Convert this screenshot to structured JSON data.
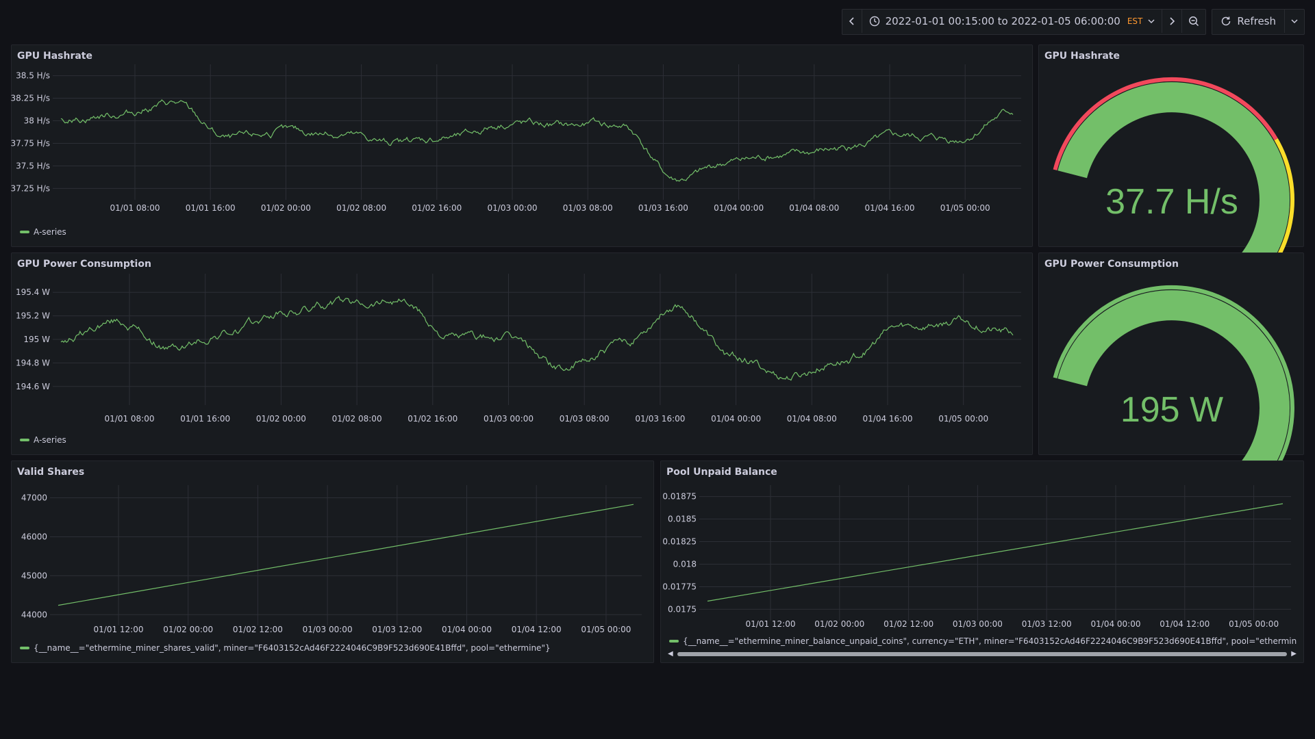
{
  "toolbar": {
    "time_range": "2022-01-01 00:15:00 to 2022-01-05 06:00:00",
    "timezone": "EST",
    "refresh_label": "Refresh"
  },
  "panels": {
    "hashrate_ts": {
      "title": "GPU Hashrate",
      "legend": "A-series"
    },
    "hashrate_gauge": {
      "title": "GPU Hashrate",
      "value": "37.7 H/s"
    },
    "power_ts": {
      "title": "GPU Power Consumption",
      "legend": "A-series"
    },
    "power_gauge": {
      "title": "GPU Power Consumption",
      "value": "195 W"
    },
    "shares": {
      "title": "Valid Shares",
      "legend": "{__name__=\"ethermine_miner_shares_valid\", miner=\"F6403152cAd46F2224046C9B9F523d690E41Bffd\", pool=\"ethermine\"}"
    },
    "balance": {
      "title": "Pool Unpaid Balance",
      "legend": "{__name__=\"ethermine_miner_balance_unpaid_coins\", currency=\"ETH\", miner=\"F6403152cAd46F2224046C9B9F523d690E41Bffd\", pool=\"ethermine\"}"
    }
  },
  "colors": {
    "series": "#73bf69",
    "red": "#f2495c",
    "yellow": "#fade2a",
    "track": "#2c2f36",
    "grid": "#2c2f36"
  },
  "chart_data": [
    {
      "id": "hashrate",
      "type": "line",
      "series": [
        {
          "name": "A-series",
          "x": [
            "2022-01-01 00:15",
            "2022-01-01 06:00",
            "2022-01-01 12:00",
            "2022-01-01 18:00",
            "2022-01-02 00:00",
            "2022-01-02 06:00",
            "2022-01-02 12:00",
            "2022-01-02 18:00",
            "2022-01-03 00:00",
            "2022-01-03 06:00",
            "2022-01-03 12:00",
            "2022-01-03 18:00",
            "2022-01-04 00:00",
            "2022-01-04 06:00",
            "2022-01-04 12:00",
            "2022-01-04 18:00",
            "2022-01-05 00:00",
            "2022-01-05 06:00"
          ],
          "values": [
            38.0,
            38.08,
            38.2,
            37.8,
            37.88,
            37.85,
            37.75,
            37.82,
            37.98,
            37.95,
            37.95,
            37.35,
            37.55,
            37.62,
            37.7,
            37.83,
            37.8,
            38.1
          ]
        }
      ],
      "yticks": [
        "37.25 H/s",
        "37.5 H/s",
        "37.75 H/s",
        "38 H/s",
        "38.25 H/s",
        "38.5 H/s"
      ],
      "ylim": [
        37.2,
        38.55
      ],
      "xticks": [
        "01/01 08:00",
        "01/01 16:00",
        "01/02 00:00",
        "01/02 08:00",
        "01/02 16:00",
        "01/03 00:00",
        "01/03 08:00",
        "01/03 16:00",
        "01/04 00:00",
        "01/04 08:00",
        "01/04 16:00",
        "01/05 00:00"
      ]
    },
    {
      "id": "power",
      "type": "line",
      "series": [
        {
          "name": "A-series",
          "x": [
            "2022-01-01 00:15",
            "2022-01-01 06:00",
            "2022-01-01 12:00",
            "2022-01-01 18:00",
            "2022-01-02 00:00",
            "2022-01-02 06:00",
            "2022-01-02 12:00",
            "2022-01-02 18:00",
            "2022-01-03 00:00",
            "2022-01-03 06:00",
            "2022-01-03 12:00",
            "2022-01-03 18:00",
            "2022-01-04 00:00",
            "2022-01-04 06:00",
            "2022-01-04 12:00",
            "2022-01-04 18:00",
            "2022-01-05 00:00",
            "2022-01-05 06:00"
          ],
          "values": [
            195.0,
            195.15,
            194.92,
            195.05,
            195.22,
            195.3,
            195.35,
            195.02,
            195.0,
            194.75,
            194.95,
            195.3,
            194.85,
            194.68,
            194.82,
            195.1,
            195.15,
            195.05
          ]
        }
      ],
      "yticks": [
        "194.6 W",
        "194.8 W",
        "195 W",
        "195.2 W",
        "195.4 W"
      ],
      "ylim": [
        194.5,
        195.5
      ],
      "xticks": [
        "01/01 08:00",
        "01/01 16:00",
        "01/02 00:00",
        "01/02 08:00",
        "01/02 16:00",
        "01/03 00:00",
        "01/03 08:00",
        "01/03 16:00",
        "01/04 00:00",
        "01/04 08:00",
        "01/04 16:00",
        "01/05 00:00"
      ]
    },
    {
      "id": "shares",
      "type": "line",
      "series": [
        {
          "x": [
            "2022-01-01 00:15",
            "2022-01-05 06:00"
          ],
          "values": [
            44240,
            46830
          ]
        }
      ],
      "yticks": [
        "44000",
        "45000",
        "46000",
        "47000"
      ],
      "ylim": [
        43900,
        47150
      ],
      "xticks": [
        "01/01 12:00",
        "01/02 00:00",
        "01/02 12:00",
        "01/03 00:00",
        "01/03 12:00",
        "01/04 00:00",
        "01/04 12:00",
        "01/05 00:00"
      ]
    },
    {
      "id": "balance",
      "type": "line",
      "series": [
        {
          "x": [
            "2022-01-01 00:15",
            "2022-01-05 06:00"
          ],
          "values": [
            0.01759,
            0.01867
          ]
        }
      ],
      "yticks": [
        "0.0175",
        "0.01775",
        "0.018",
        "0.01825",
        "0.0185",
        "0.01875"
      ],
      "ylim": [
        0.01745,
        0.0188
      ],
      "xticks": [
        "01/01 12:00",
        "01/02 00:00",
        "01/02 12:00",
        "01/03 00:00",
        "01/03 12:00",
        "01/04 00:00",
        "01/04 12:00",
        "01/05 00:00"
      ]
    }
  ],
  "gauges": {
    "hashrate": {
      "value": 37.7,
      "fill_fraction": 0.8,
      "threshold_red_end": 0.53,
      "threshold_yellow_end": 0.85
    },
    "power": {
      "value": 195,
      "fill_fraction": 0.8,
      "threshold_green_end": 0.87,
      "threshold_yellow_end": 0.96
    }
  }
}
